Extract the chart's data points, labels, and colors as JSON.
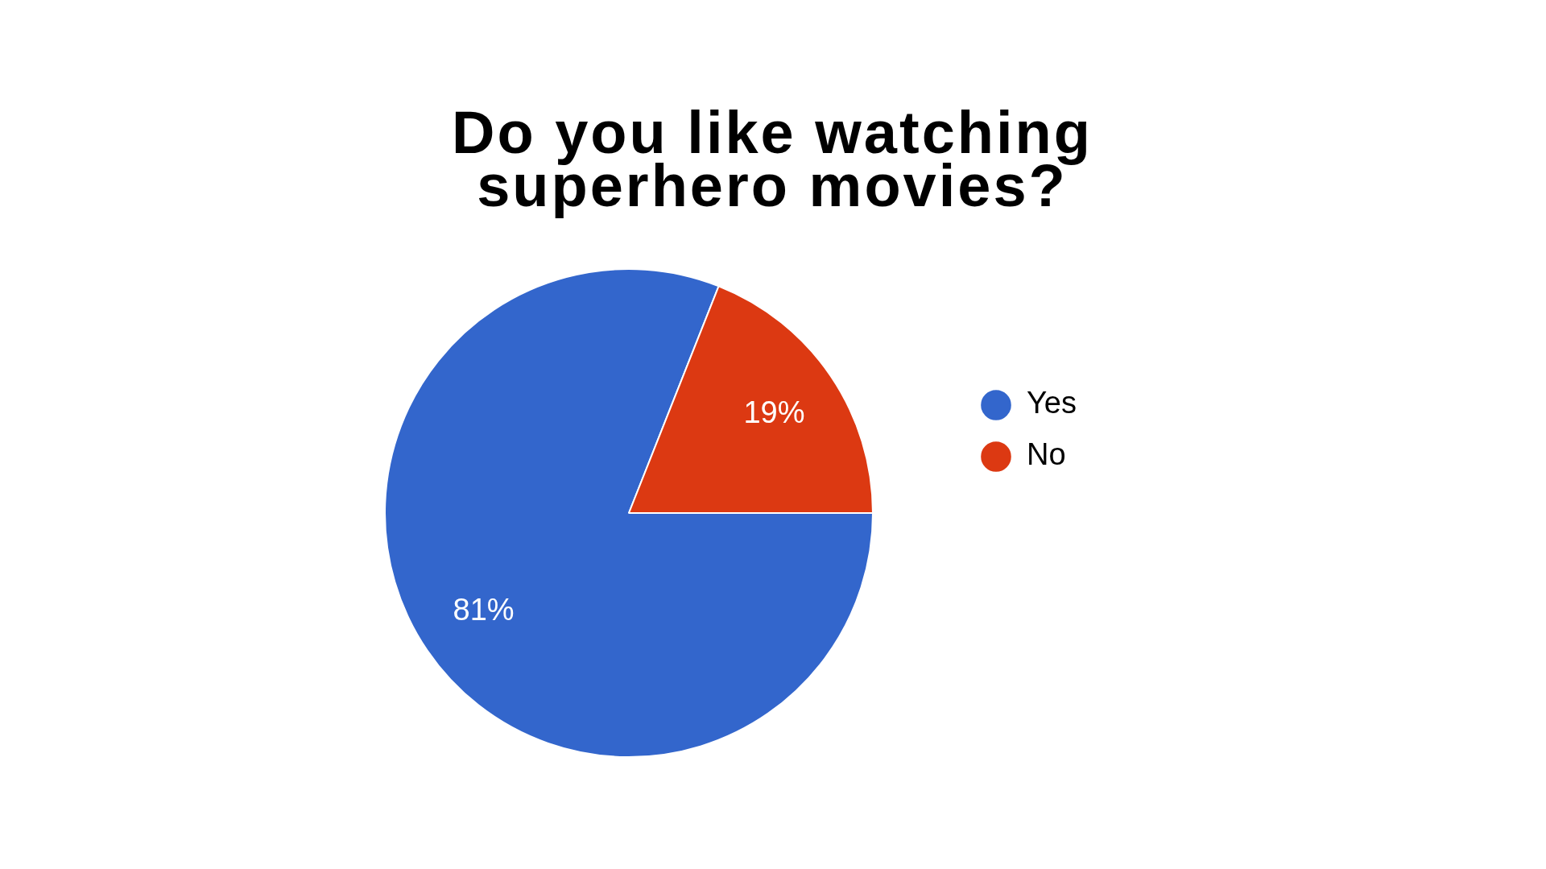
{
  "chart_data": {
    "type": "pie",
    "title": "Do you like watching superhero movies?",
    "categories": [
      "Yes",
      "No"
    ],
    "values": [
      81,
      19
    ],
    "colors": [
      "#3366cc",
      "#dc3912"
    ],
    "value_labels": [
      "81%",
      "19%"
    ],
    "legend": "right"
  }
}
